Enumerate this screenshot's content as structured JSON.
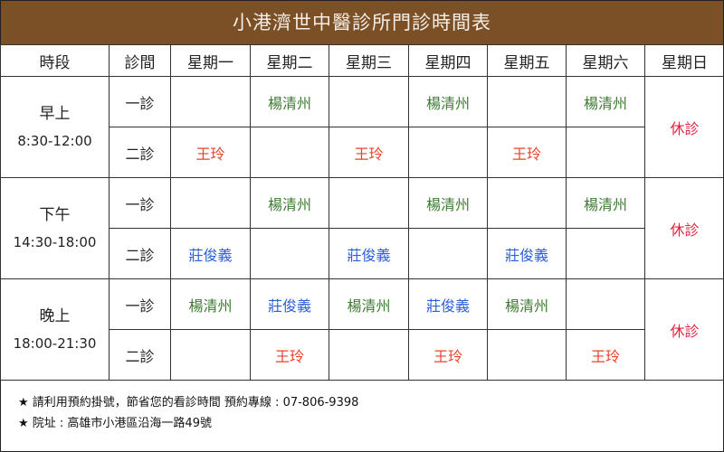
{
  "title": "小港濟世中醫診所門診時間表",
  "headers": [
    "時段",
    "診間",
    "星期一",
    "星期二",
    "星期三",
    "星期四",
    "星期五",
    "星期六",
    "星期日"
  ],
  "colors": {
    "title_bar": "#7b5027",
    "doctor_yang": "#3c7a30",
    "doctor_wang": "#e8432a",
    "doctor_zhuang": "#2f5fd6",
    "closed": "#e2233f"
  },
  "sessions": [
    {
      "name": "早上",
      "time": "8:30-12:00",
      "sunday": "休診",
      "rooms": [
        {
          "room": "一診",
          "days": [
            "",
            "楊清州",
            "",
            "楊清州",
            "",
            "楊清州"
          ]
        },
        {
          "room": "二診",
          "days": [
            "王玲",
            "",
            "王玲",
            "",
            "王玲",
            ""
          ]
        }
      ]
    },
    {
      "name": "下午",
      "time": "14:30-18:00",
      "sunday": "休診",
      "rooms": [
        {
          "room": "一診",
          "days": [
            "",
            "楊清州",
            "",
            "楊清州",
            "",
            "楊清州"
          ]
        },
        {
          "room": "二診",
          "days": [
            "莊俊義",
            "",
            "莊俊義",
            "",
            "莊俊義",
            ""
          ]
        }
      ]
    },
    {
      "name": "晚上",
      "time": "18:00-21:30",
      "sunday": "休診",
      "rooms": [
        {
          "room": "一診",
          "days": [
            "楊清州",
            "莊俊義",
            "楊清州",
            "莊俊義",
            "楊清州",
            ""
          ]
        },
        {
          "room": "二診",
          "days": [
            "",
            "王玲",
            "",
            "王玲",
            "",
            "王玲"
          ]
        }
      ]
    }
  ],
  "footer": {
    "line1": "★ 請利用預約掛號，節省您的看診時間  預約專線 : 07-806-9398",
    "line2": "★ 院址 : 高雄市小港區沿海一路49號"
  }
}
